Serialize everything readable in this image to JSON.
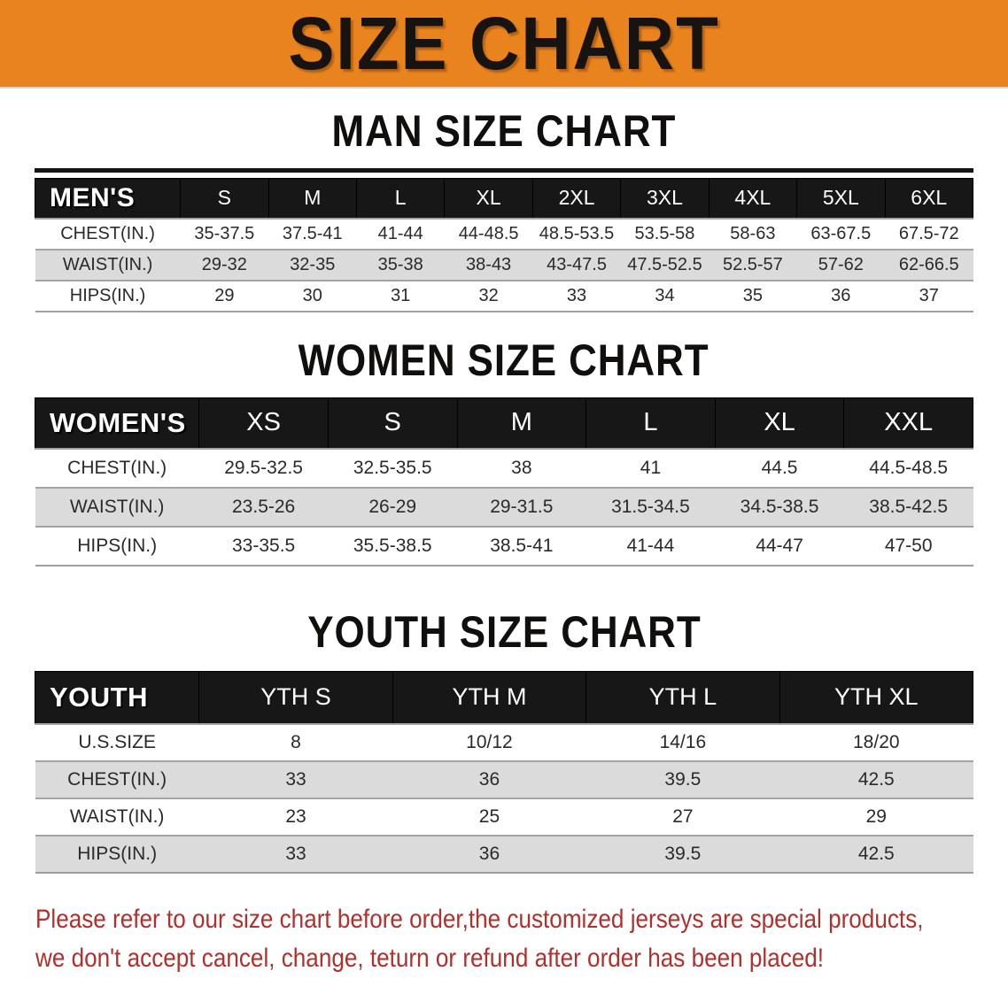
{
  "banner": {
    "title": "SIZE CHART"
  },
  "colors": {
    "banner_bg": "#E8831D",
    "table_header_bg": "#171717",
    "stripe_row_bg": "#DBDBDB",
    "note_text": "#B1302B"
  },
  "footer_note": {
    "line1": "Please refer to our size chart before order,the customized jerseys are special products,",
    "line2": "we don't accept cancel, change, teturn or refund after order has been placed!"
  },
  "chart_data": [
    {
      "type": "table",
      "title": "MAN SIZE CHART",
      "columns": [
        "MEN'S",
        "S",
        "M",
        "L",
        "XL",
        "2XL",
        "3XL",
        "4XL",
        "5XL",
        "6XL"
      ],
      "rows": [
        [
          "CHEST(IN.)",
          "35-37.5",
          "37.5-41",
          "41-44",
          "44-48.5",
          "48.5-53.5",
          "53.5-58",
          "58-63",
          "63-67.5",
          "67.5-72"
        ],
        [
          "WAIST(IN.)",
          "29-32",
          "32-35",
          "35-38",
          "38-43",
          "43-47.5",
          "47.5-52.5",
          "52.5-57",
          "57-62",
          "62-66.5"
        ],
        [
          "HIPS(IN.)",
          "29",
          "30",
          "31",
          "32",
          "33",
          "34",
          "35",
          "36",
          "37"
        ]
      ]
    },
    {
      "type": "table",
      "title": "WOMEN SIZE CHART",
      "columns": [
        "WOMEN'S",
        "XS",
        "S",
        "M",
        "L",
        "XL",
        "XXL"
      ],
      "rows": [
        [
          "CHEST(IN.)",
          "29.5-32.5",
          "32.5-35.5",
          "38",
          "41",
          "44.5",
          "44.5-48.5"
        ],
        [
          "WAIST(IN.)",
          "23.5-26",
          "26-29",
          "29-31.5",
          "31.5-34.5",
          "34.5-38.5",
          "38.5-42.5"
        ],
        [
          "HIPS(IN.)",
          "33-35.5",
          "35.5-38.5",
          "38.5-41",
          "41-44",
          "44-47",
          "47-50"
        ]
      ]
    },
    {
      "type": "table",
      "title": "YOUTH SIZE CHART",
      "columns": [
        "YOUTH",
        "YTH S",
        "YTH M",
        "YTH L",
        "YTH XL"
      ],
      "rows": [
        [
          "U.S.SIZE",
          "8",
          "10/12",
          "14/16",
          "18/20"
        ],
        [
          "CHEST(IN.)",
          "33",
          "36",
          "39.5",
          "42.5"
        ],
        [
          "WAIST(IN.)",
          "23",
          "25",
          "27",
          "29"
        ],
        [
          "HIPS(IN.)",
          "33",
          "36",
          "39.5",
          "42.5"
        ]
      ]
    }
  ]
}
